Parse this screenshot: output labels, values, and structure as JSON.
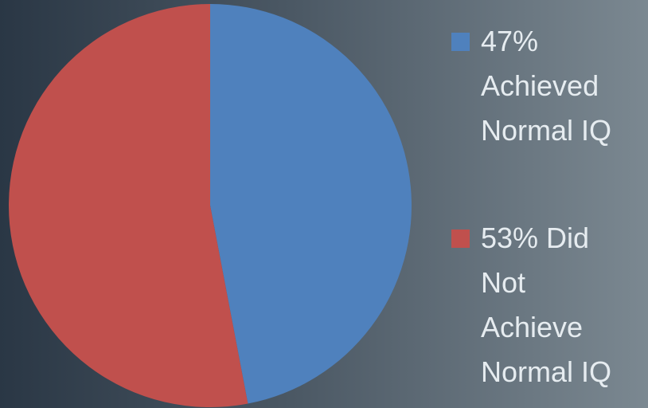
{
  "chart_data": {
    "type": "pie",
    "categories": [
      "47% Achieved Normal IQ",
      "53% Did Not Achieve Normal IQ"
    ],
    "values": [
      47,
      53
    ],
    "colors": [
      "#4f81bd",
      "#c0504d"
    ],
    "legend": "right"
  }
}
